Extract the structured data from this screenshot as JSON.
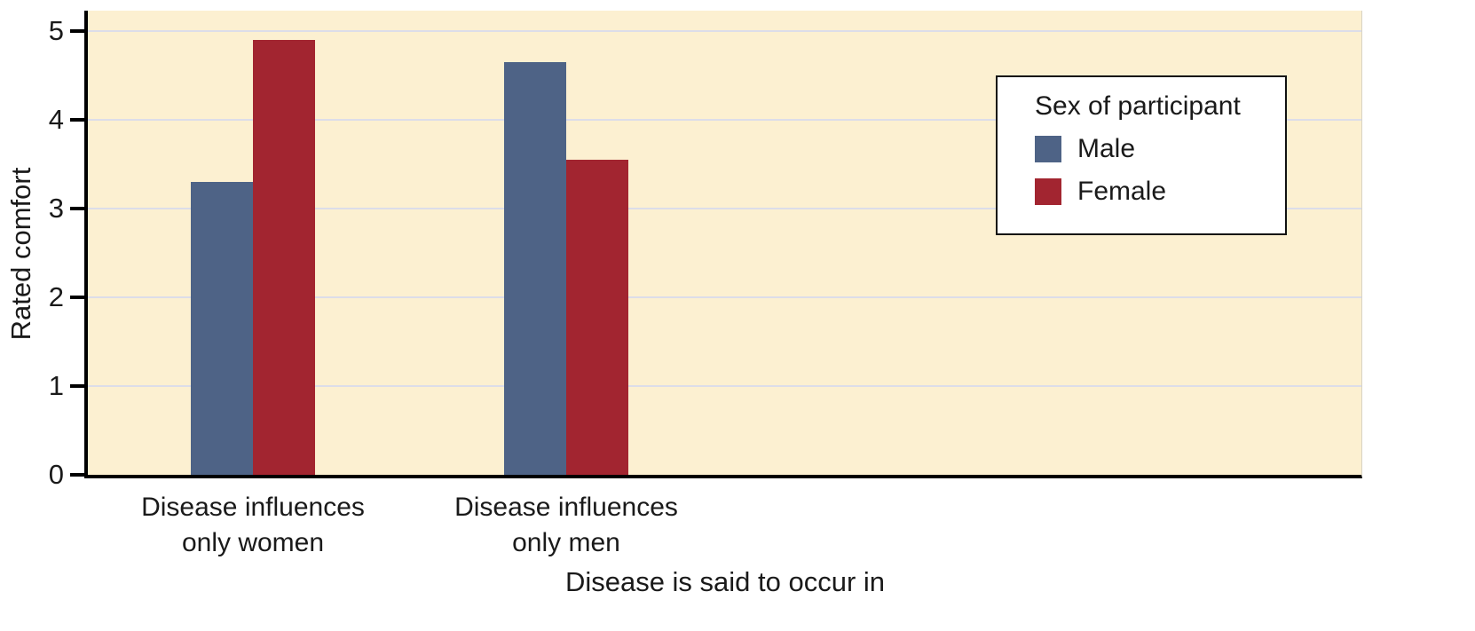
{
  "chart_data": {
    "type": "bar",
    "title": "",
    "xlabel": "Disease is said to occur in",
    "ylabel": "Rated comfort",
    "ylim": [
      0,
      5
    ],
    "yticks": [
      0,
      1,
      2,
      3,
      4,
      5
    ],
    "grid": true,
    "plot_background": "#fcf0d1",
    "grid_color": "#dcdde9",
    "axis_color": "#000000",
    "categories": [
      "Disease influences\nonly women",
      "Disease influences\nonly men"
    ],
    "series": [
      {
        "name": "Male",
        "color": "#4e6386",
        "values": [
          3.3,
          4.65
        ]
      },
      {
        "name": "Female",
        "color": "#a22530",
        "values": [
          4.9,
          3.55
        ]
      }
    ],
    "legend": {
      "title": "Sex of participant",
      "position": "top-right"
    }
  }
}
